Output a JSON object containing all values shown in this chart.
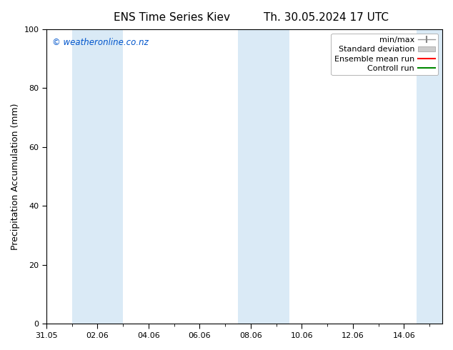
{
  "title_left": "ENS Time Series Kiev",
  "title_right": "Th. 30.05.2024 17 UTC",
  "ylabel": "Precipitation Accumulation (mm)",
  "ylim": [
    0,
    100
  ],
  "yticks": [
    0,
    20,
    40,
    60,
    80,
    100
  ],
  "xlim": [
    0,
    15.5
  ],
  "xtick_positions": [
    0,
    2,
    4,
    6,
    8,
    10,
    12,
    14
  ],
  "xtick_labels": [
    "31.05",
    "02.06",
    "04.06",
    "06.06",
    "08.06",
    "10.06",
    "12.06",
    "14.06"
  ],
  "watermark": "© weatheronline.co.nz",
  "watermark_color": "#0055cc",
  "background_color": "#ffffff",
  "shaded_bands": [
    {
      "x_start": 1.0,
      "x_end": 3.0,
      "color": "#daeaf6"
    },
    {
      "x_start": 7.5,
      "x_end": 9.5,
      "color": "#daeaf6"
    },
    {
      "x_start": 14.5,
      "x_end": 15.5,
      "color": "#daeaf6"
    }
  ],
  "legend_entries": [
    {
      "label": "min/max",
      "color": "#aaaaaa",
      "type": "errorbar"
    },
    {
      "label": "Standard deviation",
      "color": "#cccccc",
      "type": "fill"
    },
    {
      "label": "Ensemble mean run",
      "color": "#ff0000",
      "type": "line"
    },
    {
      "label": "Controll run",
      "color": "#008800",
      "type": "line"
    }
  ],
  "title_fontsize": 11,
  "label_fontsize": 9,
  "tick_fontsize": 8,
  "legend_fontsize": 8,
  "watermark_fontsize": 8.5
}
